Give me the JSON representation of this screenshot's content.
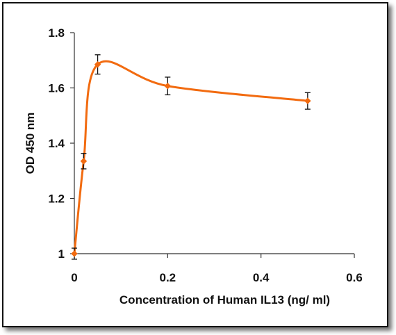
{
  "chart_data": {
    "type": "line",
    "title": "",
    "xlabel": "Concentration of Human IL13 (ng/ ml)",
    "ylabel": "OD 450 nm",
    "xlim": [
      0,
      0.6
    ],
    "ylim": [
      1,
      1.8
    ],
    "x_ticks": [
      0,
      0.2,
      0.4,
      0.6
    ],
    "x_tick_labels": [
      "0",
      "0.2",
      "0.4",
      "0.6"
    ],
    "y_ticks": [
      1,
      1.2,
      1.4,
      1.6,
      1.8
    ],
    "y_tick_labels": [
      "1",
      "1.2",
      "1.4",
      "1.6",
      "1.8"
    ],
    "grid": false,
    "legend": "none",
    "smooth": true,
    "series": [
      {
        "color": "#f26b10",
        "x": [
          0,
          0.02,
          0.05,
          0.2,
          0.5
        ],
        "y": [
          1.0,
          1.335,
          1.685,
          1.607,
          1.553
        ],
        "error": [
          0.02,
          0.028,
          0.035,
          0.032,
          0.03
        ]
      }
    ]
  }
}
